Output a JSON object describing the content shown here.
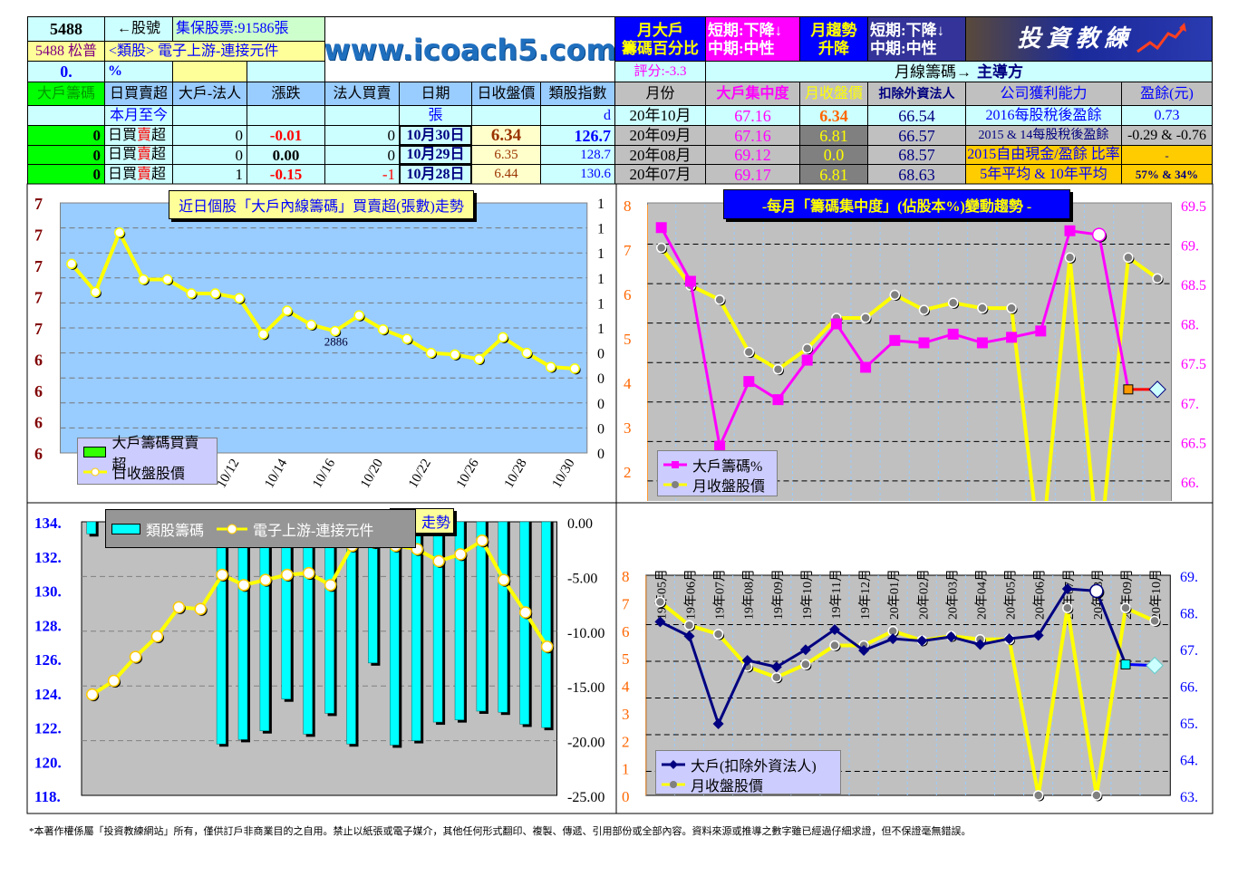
{
  "header": {
    "stock_code": "5488",
    "stock_code_label": "←股號",
    "custody": "集保股票:91586張",
    "stock_name": "5488 松普",
    "sector": "<類股> 電子上游-連接元件",
    "pct_value": "0.",
    "pct_sign": "%",
    "site": "www.icoach5.com",
    "monthly_pct_title": [
      "月大戶",
      "籌碼百分比"
    ],
    "short1": "短期:下降↓",
    "mid1": "中期:中性",
    "trend_title": [
      "月趨勢",
      "升降"
    ],
    "short2": "短期:下降↓",
    "mid2": "中期:中性",
    "banner": "投資教練",
    "score": "評分:-3.3",
    "monthly_chip_label": "月線籌碼→",
    "leader": "主導方"
  },
  "daily_table": {
    "headers": [
      "大戶籌碼",
      "日買賣超",
      "大戶-法人",
      "漲跌",
      "法人買賣",
      "日期",
      "日收盤價",
      "類股指數"
    ],
    "subrow": [
      "本月至今",
      "張",
      "d"
    ],
    "rows": [
      {
        "big": "0",
        "label": [
          "日買",
          "賣",
          "超"
        ],
        "net": "0",
        "change": "-0.01",
        "inst": "0",
        "date": "10月30日",
        "close": "6.34",
        "index": "126.7"
      },
      {
        "big": "0",
        "label": [
          "日買",
          "賣",
          "超"
        ],
        "net": "0",
        "change": "0.00",
        "inst": "0",
        "date": "10月29日",
        "close": "6.35",
        "index": "128.7"
      },
      {
        "big": "0",
        "label": [
          "日買",
          "賣",
          "超"
        ],
        "net": "1",
        "change": "-0.15",
        "inst": "-1",
        "date": "10月28日",
        "close": "6.44",
        "index": "130.6"
      }
    ]
  },
  "monthly_table": {
    "headers": [
      "月份",
      "大戶集中度",
      "月收盤價",
      "扣除外資法人"
    ],
    "rows": [
      {
        "month": "20年10月",
        "conc": "67.16",
        "close": "6.34",
        "excl": "66.54"
      },
      {
        "month": "20年09月",
        "conc": "67.16",
        "close": "6.81",
        "excl": "66.57"
      },
      {
        "month": "20年08月",
        "conc": "69.12",
        "close": "0.0",
        "excl": "68.57"
      },
      {
        "month": "20年07月",
        "conc": "69.17",
        "close": "6.81",
        "excl": "68.63"
      }
    ]
  },
  "profit": {
    "headers": [
      "公司獲利能力",
      "盈餘(元)"
    ],
    "rows": [
      [
        "2016每股稅後盈餘",
        "0.73"
      ],
      [
        "2015 & 14每股稅後盈餘",
        "-0.29 & -0.76"
      ],
      [
        "2015自由現金/盈餘 比率",
        "-"
      ],
      [
        "5年平均 & 10年平均",
        "57% & 34%"
      ]
    ]
  },
  "chart_data": [
    {
      "type": "line",
      "title": "近日個股「大戶內線籌碼」買賣超(張數)走勢",
      "annotation": "2886",
      "left_axis": {
        "ylim": [
          5.8,
          7.4
        ],
        "tick_values": [
          7.4,
          7.2,
          7.0,
          6.8,
          6.6,
          6.4,
          6.2,
          6.0,
          5.8
        ],
        "tick_labels": [
          "7",
          "7",
          "7",
          "7",
          "7",
          "6",
          "6",
          "6",
          "6"
        ]
      },
      "right_axis": {
        "tick_labels": [
          "1",
          "1",
          "1",
          "1",
          "1",
          "1",
          "0",
          "0",
          "0",
          "0",
          "0"
        ]
      },
      "x_tick_labels": [
        "10/12",
        "10/14",
        "10/16",
        "10/20",
        "10/22",
        "10/26",
        "10/28",
        "10/30"
      ],
      "series": [
        {
          "name": "大戶籌碼買賣超",
          "type": "bar",
          "color": "#33ff00"
        },
        {
          "name": "日收盤股價",
          "type": "line",
          "color": "#ffff00",
          "values": [
            7.01,
            6.83,
            7.21,
            6.91,
            6.91,
            6.82,
            6.82,
            6.79,
            6.56,
            6.71,
            6.62,
            6.58,
            6.68,
            6.59,
            6.53,
            6.44,
            6.43,
            6.4,
            6.54,
            6.44,
            6.35,
            6.34
          ]
        }
      ]
    },
    {
      "type": "line",
      "title": "-每月「籌碼集中度」(佔股本%)變動趨勢 -",
      "categories": [
        "19年05月",
        "19年06月",
        "19年07月",
        "19年08月",
        "19年09月",
        "19年10月",
        "19年11月",
        "19年12月",
        "20年01月",
        "20年02月",
        "20年03月",
        "20年04月",
        "20年05月",
        "20年06月",
        "20年07月",
        "20年08月",
        "20年09月",
        "20年10月"
      ],
      "left_axis": {
        "ylim": [
          0,
          8
        ],
        "tick_labels": [
          "8",
          "7",
          "6",
          "5",
          "4",
          "3",
          "2"
        ]
      },
      "right_axis": {
        "ylim": [
          65,
          69.5
        ],
        "tick_labels": [
          "69.5",
          "69.",
          "68.5",
          "68.",
          "67.5",
          "67.",
          "66.5",
          "66."
        ]
      },
      "series": [
        {
          "name": "大戶籌碼%",
          "axis": "right",
          "color": "#ff00ff",
          "values": [
            69.21,
            68.53,
            66.44,
            67.26,
            67.03,
            67.53,
            67.99,
            67.44,
            67.78,
            67.75,
            67.86,
            67.75,
            67.82,
            67.9,
            69.17,
            69.12,
            67.16,
            67.16
          ]
        },
        {
          "name": "月收盤股價",
          "axis": "left",
          "color": "#ffff00",
          "values": [
            7.03,
            6.18,
            5.86,
            4.68,
            4.29,
            4.76,
            5.45,
            5.45,
            5.97,
            5.63,
            5.79,
            5.67,
            5.67,
            0,
            6.81,
            0,
            6.81,
            6.34
          ]
        }
      ]
    },
    {
      "type": "bar+line",
      "title": "走勢",
      "left_axis": {
        "ylim": [
          118,
          134
        ],
        "tick_labels": [
          "134.",
          "132.",
          "130.",
          "128.",
          "126.",
          "124.",
          "122.",
          "120.",
          "118."
        ]
      },
      "right_axis": {
        "ylim": [
          -25,
          0
        ],
        "tick_labels": [
          "0.00",
          "-5.00",
          "-10.00",
          "-15.00",
          "-20.00",
          "-25.00"
        ]
      },
      "series": [
        {
          "name": "類股籌碼",
          "type": "bar",
          "axis": "right",
          "color": "#00ffff",
          "values": [
            -1.1,
            0,
            0,
            0,
            0,
            0,
            -20.3,
            -19.9,
            -19.1,
            -16.2,
            -19.4,
            -17.5,
            -20.3,
            -12.9,
            -20.4,
            -20.0,
            -18.3,
            -18.1,
            -17.3,
            -17.4,
            -18.5,
            -18.8
          ]
        },
        {
          "name": "電子上游-連接元件",
          "type": "line",
          "axis": "left",
          "color": "#ffff00",
          "values": [
            123.9,
            124.7,
            126.1,
            127.3,
            129.0,
            128.9,
            130.9,
            130.3,
            130.6,
            130.9,
            131.0,
            130.3,
            132.6,
            132.8,
            132.6,
            132.4,
            131.7,
            132.1,
            132.9,
            130.6,
            128.7,
            126.7
          ]
        }
      ]
    },
    {
      "type": "line",
      "categories": [
        "19年05月",
        "19年06月",
        "19年07月",
        "19年08月",
        "19年09月",
        "19年10月",
        "19年11月",
        "19年12月",
        "20年01月",
        "20年02月",
        "20年03月",
        "20年04月",
        "20年05月",
        "20年06月",
        "20年07月",
        "20年08月",
        "20年09月",
        "20年10月"
      ],
      "left_axis": {
        "ylim": [
          0,
          8
        ],
        "tick_labels": [
          "8",
          "7",
          "6",
          "5",
          "4",
          "3",
          "2",
          "1",
          "0"
        ]
      },
      "right_axis": {
        "ylim": [
          63,
          69
        ],
        "tick_labels": [
          "69.",
          "68.",
          "67.",
          "66.",
          "65.",
          "64.",
          "63."
        ]
      },
      "series": [
        {
          "name": "大戶(扣除外資法人)",
          "axis": "right",
          "color": "#000080",
          "values": [
            67.73,
            67.34,
            64.95,
            66.68,
            66.5,
            66.97,
            67.52,
            66.95,
            67.27,
            67.21,
            67.32,
            67.11,
            67.27,
            67.36,
            68.63,
            68.57,
            66.57,
            66.54
          ]
        },
        {
          "name": "月收盤股價",
          "axis": "left",
          "color": "#ffff00",
          "values": [
            7.03,
            6.18,
            5.86,
            4.68,
            4.29,
            4.76,
            5.45,
            5.45,
            5.97,
            5.63,
            5.79,
            5.67,
            5.67,
            0,
            6.81,
            0,
            6.81,
            6.34
          ]
        }
      ]
    }
  ],
  "footer": "*本著作權係屬「投資教練網站」所有，僅供訂戶非商業目的之自用。禁止以紙張或電子媒介，其他任何形式翻印、複製、傳遞、引用部份或全部內容。資料來源或推導之數字雖已經過仔細求證，但不保證毫無錯誤。"
}
